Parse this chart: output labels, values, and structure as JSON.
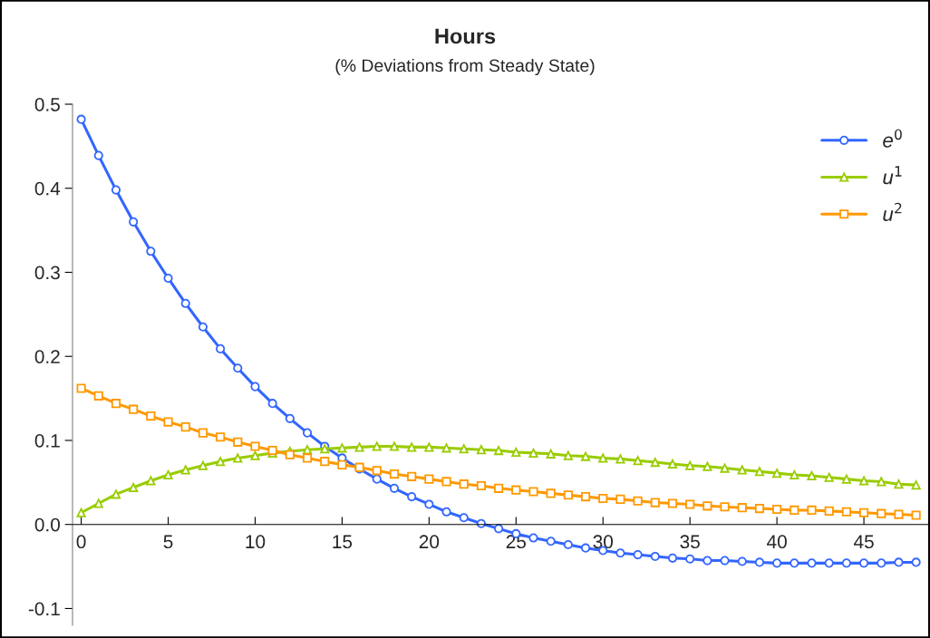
{
  "chart_data": {
    "type": "line",
    "title": "Hours",
    "subtitle": "(% Deviations from Steady State)",
    "x": [
      0,
      1,
      2,
      3,
      4,
      5,
      6,
      7,
      8,
      9,
      10,
      11,
      12,
      13,
      14,
      15,
      16,
      17,
      18,
      19,
      20,
      21,
      22,
      23,
      24,
      25,
      26,
      27,
      28,
      29,
      30,
      31,
      32,
      33,
      34,
      35,
      36,
      37,
      38,
      39,
      40,
      41,
      42,
      43,
      44,
      45,
      46,
      47,
      48
    ],
    "series": [
      {
        "name": "e$^{0}$",
        "color": "#3366ff",
        "marker": "circle",
        "values": [
          0.482,
          0.439,
          0.398,
          0.36,
          0.325,
          0.293,
          0.263,
          0.235,
          0.209,
          0.186,
          0.164,
          0.144,
          0.126,
          0.109,
          0.093,
          0.079,
          0.066,
          0.054,
          0.043,
          0.033,
          0.024,
          0.015,
          0.008,
          0.001,
          -0.005,
          -0.011,
          -0.016,
          -0.02,
          -0.024,
          -0.028,
          -0.031,
          -0.034,
          -0.036,
          -0.038,
          -0.04,
          -0.041,
          -0.043,
          -0.043,
          -0.044,
          -0.045,
          -0.046,
          -0.046,
          -0.046,
          -0.046,
          -0.046,
          -0.046,
          -0.046,
          -0.045,
          -0.045
        ]
      },
      {
        "name": "u$^{1}$",
        "color": "#99cc00",
        "marker": "triangle",
        "values": [
          0.014,
          0.025,
          0.036,
          0.044,
          0.052,
          0.059,
          0.065,
          0.07,
          0.075,
          0.079,
          0.082,
          0.085,
          0.087,
          0.089,
          0.09,
          0.091,
          0.092,
          0.093,
          0.093,
          0.092,
          0.092,
          0.091,
          0.09,
          0.089,
          0.088,
          0.086,
          0.085,
          0.084,
          0.082,
          0.081,
          0.079,
          0.078,
          0.076,
          0.074,
          0.072,
          0.07,
          0.069,
          0.067,
          0.065,
          0.063,
          0.061,
          0.059,
          0.058,
          0.056,
          0.054,
          0.052,
          0.051,
          0.048,
          0.047
        ]
      },
      {
        "name": "u$^{2}$",
        "color": "#ff9900",
        "marker": "square",
        "values": [
          0.162,
          0.153,
          0.144,
          0.137,
          0.129,
          0.122,
          0.116,
          0.109,
          0.104,
          0.098,
          0.093,
          0.088,
          0.083,
          0.079,
          0.075,
          0.071,
          0.068,
          0.064,
          0.06,
          0.057,
          0.054,
          0.051,
          0.048,
          0.046,
          0.043,
          0.041,
          0.039,
          0.037,
          0.035,
          0.033,
          0.031,
          0.03,
          0.028,
          0.026,
          0.025,
          0.024,
          0.022,
          0.021,
          0.02,
          0.019,
          0.018,
          0.017,
          0.017,
          0.016,
          0.015,
          0.014,
          0.013,
          0.012,
          0.011
        ]
      }
    ],
    "xlim": [
      -0.5,
      48.8
    ],
    "xticks": [
      0,
      5,
      10,
      15,
      20,
      25,
      30,
      35,
      40,
      45
    ],
    "ylim": [
      -0.12,
      0.5
    ],
    "yticks": [
      {
        "value": -0.1,
        "label": "-0.1"
      },
      {
        "value": 0,
        "label": "0.0"
      },
      {
        "value": 0.1,
        "label": "0.1"
      },
      {
        "value": 0.2,
        "label": "0.2"
      },
      {
        "value": 0.3,
        "label": "0.3"
      },
      {
        "value": 0.4,
        "label": "0.4"
      },
      {
        "value": 0.5,
        "label": "0.5"
      }
    ],
    "grid": false,
    "legend": "top right",
    "line_style": "solid"
  }
}
